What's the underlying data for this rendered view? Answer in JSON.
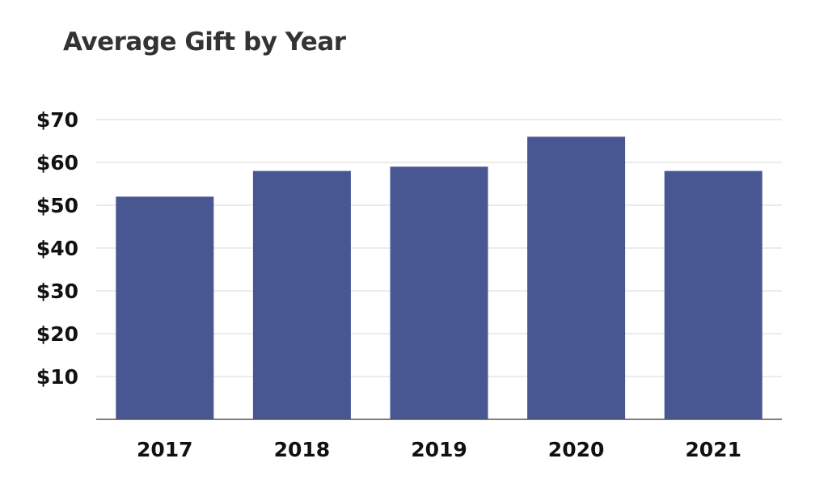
{
  "chart_data": {
    "type": "bar",
    "title": "Average Gift by Year",
    "categories": [
      "2017",
      "2018",
      "2019",
      "2020",
      "2021"
    ],
    "values": [
      52,
      58,
      59,
      66,
      58
    ],
    "ylim": [
      0,
      70
    ],
    "yticks": [
      10,
      20,
      30,
      40,
      50,
      60,
      70
    ],
    "ytick_prefix": "$",
    "xlabel": "",
    "ylabel": "",
    "grid": true,
    "bar_color": "#485792",
    "grid_color": "#d9d9d9",
    "axis_color": "#555555"
  }
}
